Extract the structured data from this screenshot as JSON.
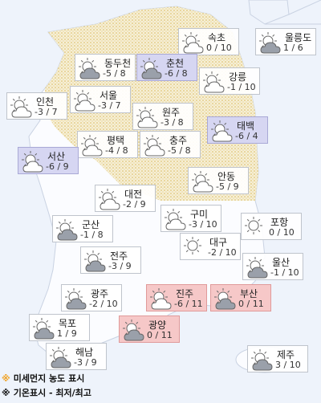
{
  "cities": [
    {
      "name": "속초",
      "temp": "0 / 10",
      "icon": "partly-cloudy",
      "level": "normal"
    },
    {
      "name": "울릉도",
      "temp": "1 / 6",
      "icon": "cloudy",
      "level": "normal"
    },
    {
      "name": "동두천",
      "temp": "-5 / 8",
      "icon": "cloudy",
      "level": "normal"
    },
    {
      "name": "춘천",
      "temp": "-6 / 8",
      "icon": "cloudy",
      "level": "bad"
    },
    {
      "name": "강릉",
      "temp": "-1 / 10",
      "icon": "partly-cloudy",
      "level": "normal"
    },
    {
      "name": "인천",
      "temp": "-3 / 7",
      "icon": "partly-cloudy",
      "level": "normal"
    },
    {
      "name": "서울",
      "temp": "-3 / 7",
      "icon": "partly-cloudy",
      "level": "normal"
    },
    {
      "name": "원주",
      "temp": "-3 / 8",
      "icon": "partly-cloudy",
      "level": "normal"
    },
    {
      "name": "태백",
      "temp": "-6 / 4",
      "icon": "partly-cloudy",
      "level": "bad"
    },
    {
      "name": "평택",
      "temp": "-4 / 8",
      "icon": "partly-cloudy",
      "level": "normal"
    },
    {
      "name": "충주",
      "temp": "-5 / 8",
      "icon": "partly-cloudy",
      "level": "normal"
    },
    {
      "name": "서산",
      "temp": "-6 / 9",
      "icon": "partly-cloudy",
      "level": "bad"
    },
    {
      "name": "안동",
      "temp": "-5 / 9",
      "icon": "partly-cloudy",
      "level": "normal"
    },
    {
      "name": "대전",
      "temp": "-2 / 9",
      "icon": "partly-cloudy",
      "level": "normal"
    },
    {
      "name": "구미",
      "temp": "-3 / 10",
      "icon": "partly-cloudy",
      "level": "normal"
    },
    {
      "name": "포항",
      "temp": "0 / 10",
      "icon": "sunny",
      "level": "normal"
    },
    {
      "name": "군산",
      "temp": "-1 / 8",
      "icon": "cloudy",
      "level": "normal"
    },
    {
      "name": "대구",
      "temp": "-2 / 10",
      "icon": "sunny",
      "level": "normal"
    },
    {
      "name": "전주",
      "temp": "-3 / 9",
      "icon": "cloudy",
      "level": "normal"
    },
    {
      "name": "울산",
      "temp": "-1 / 10",
      "icon": "cloudy",
      "level": "normal"
    },
    {
      "name": "광주",
      "temp": "-2 / 10",
      "icon": "cloudy",
      "level": "normal"
    },
    {
      "name": "진주",
      "temp": "-6 / 11",
      "icon": "partly-cloudy",
      "level": "warn"
    },
    {
      "name": "부산",
      "temp": "0 / 11",
      "icon": "cloudy",
      "level": "warn"
    },
    {
      "name": "목포",
      "temp": "1 / 9",
      "icon": "cloudy",
      "level": "normal"
    },
    {
      "name": "광양",
      "temp": "0 / 11",
      "icon": "cloudy",
      "level": "warn"
    },
    {
      "name": "해남",
      "temp": "-3 / 9",
      "icon": "cloudy",
      "level": "normal"
    },
    {
      "name": "제주",
      "temp": "3 / 10",
      "icon": "cloudy",
      "level": "normal"
    }
  ],
  "legend": [
    {
      "mark": "※",
      "text": "미세먼지 농도 표시",
      "color": "#f0a020"
    },
    {
      "mark": "※",
      "text": "기온표시 - 최저/최고",
      "color": "#111111"
    }
  ]
}
